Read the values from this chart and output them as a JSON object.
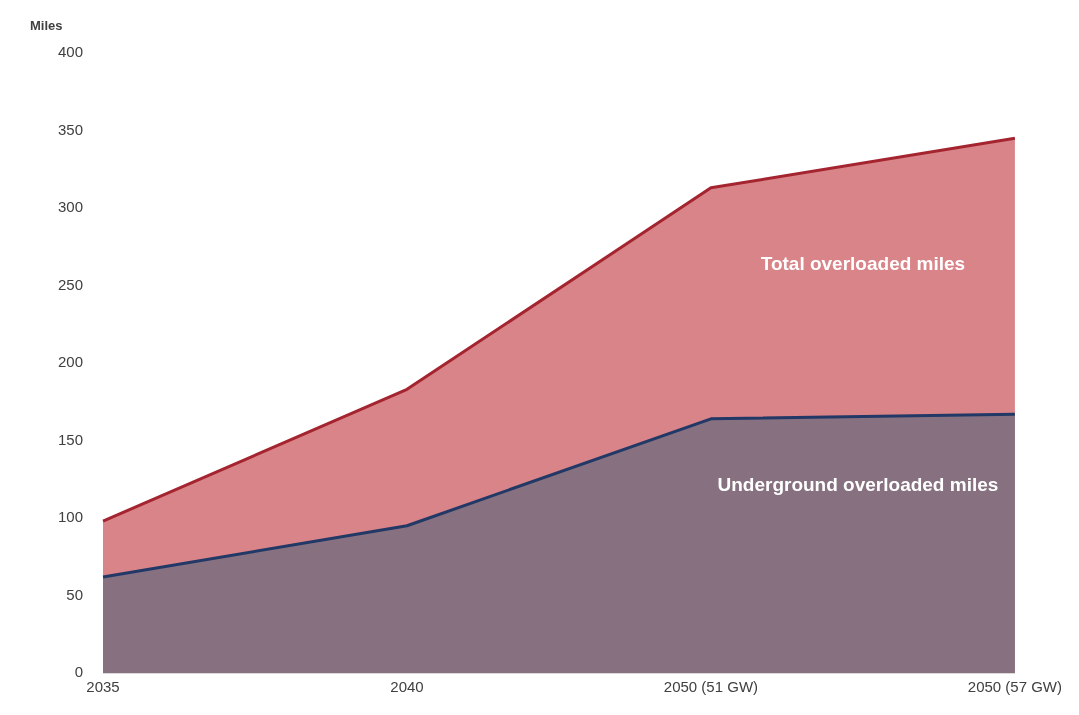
{
  "chart_data": {
    "type": "area",
    "ylabel": "Miles",
    "categories": [
      "2035",
      "2040",
      "2050 (51 GW)",
      "2050 (57 GW)"
    ],
    "series": [
      {
        "name": "Total overloaded miles",
        "color": "#d88488",
        "values": [
          98,
          183,
          313,
          345
        ]
      },
      {
        "name": "Underground overloaded miles",
        "color": "#87707f",
        "values": [
          62,
          95,
          164,
          167
        ]
      }
    ],
    "ylim": [
      0,
      400
    ],
    "yticks": [
      0,
      50,
      100,
      150,
      200,
      250,
      300,
      350,
      400
    ],
    "grid": false,
    "legend": false
  }
}
